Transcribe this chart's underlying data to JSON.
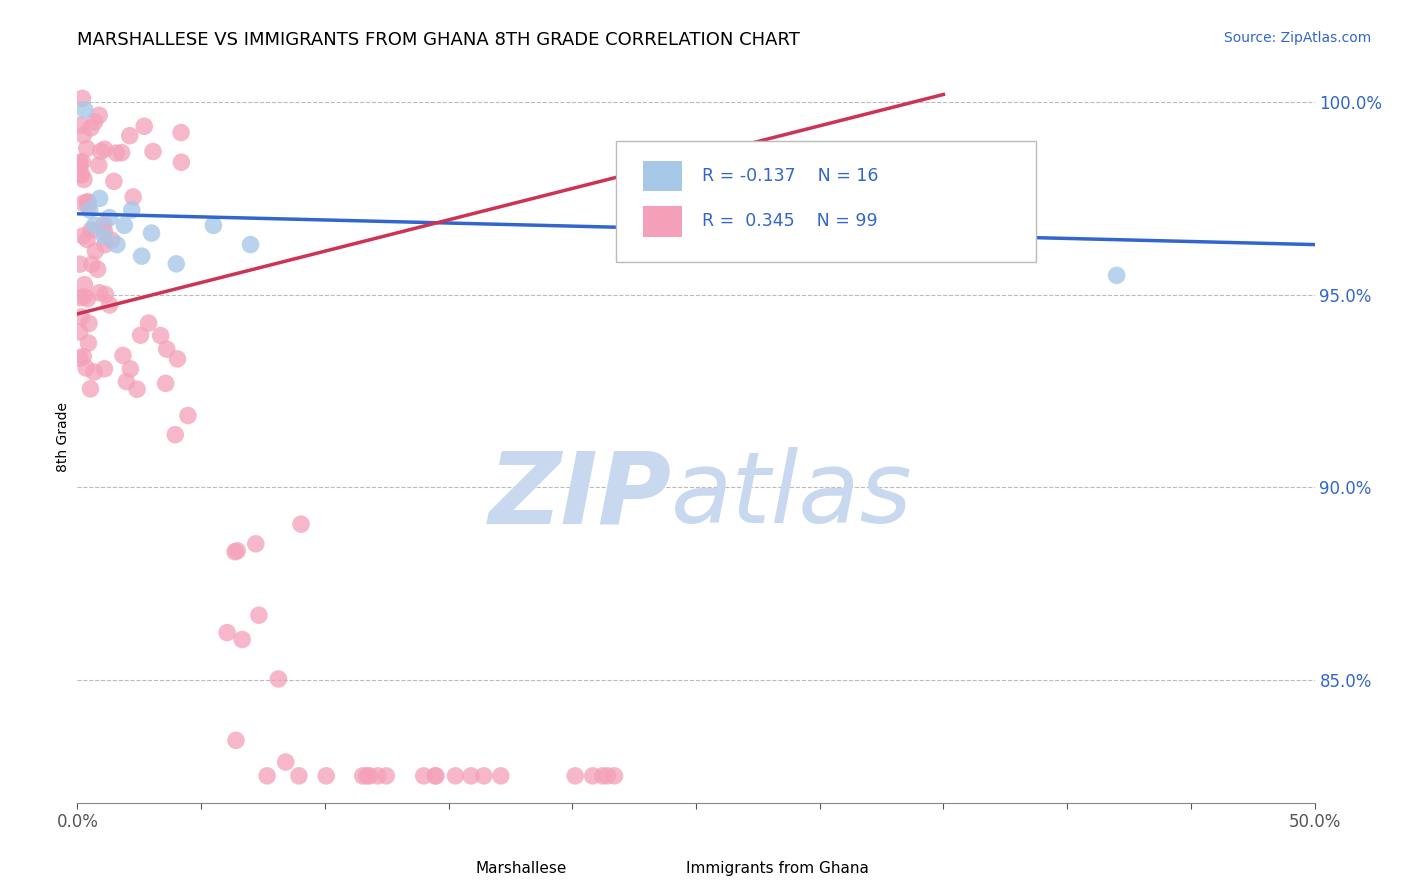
{
  "title": "MARSHALLESE VS IMMIGRANTS FROM GHANA 8TH GRADE CORRELATION CHART",
  "source_text": "Source: ZipAtlas.com",
  "ylabel": "8th Grade",
  "xlim": [
    0.0,
    0.5
  ],
  "ylim": [
    0.818,
    1.008
  ],
  "blue_color": "#A8C8E8",
  "pink_color": "#F4A0B8",
  "blue_line_color": "#3366CC",
  "pink_line_color": "#CC3355",
  "R_blue": -0.137,
  "N_blue": 16,
  "R_pink": 0.345,
  "N_pink": 99,
  "legend_text_color": "#3366CC",
  "watermark_color": "#C8D8EE",
  "title_fontsize": 13,
  "source_fontsize": 10,
  "blue_line_x0": 0.0,
  "blue_line_y0": 0.971,
  "blue_line_x1": 0.5,
  "blue_line_y1": 0.963,
  "pink_line_x0": 0.0,
  "pink_line_y0": 0.945,
  "pink_line_x1": 0.35,
  "pink_line_y1": 1.002
}
